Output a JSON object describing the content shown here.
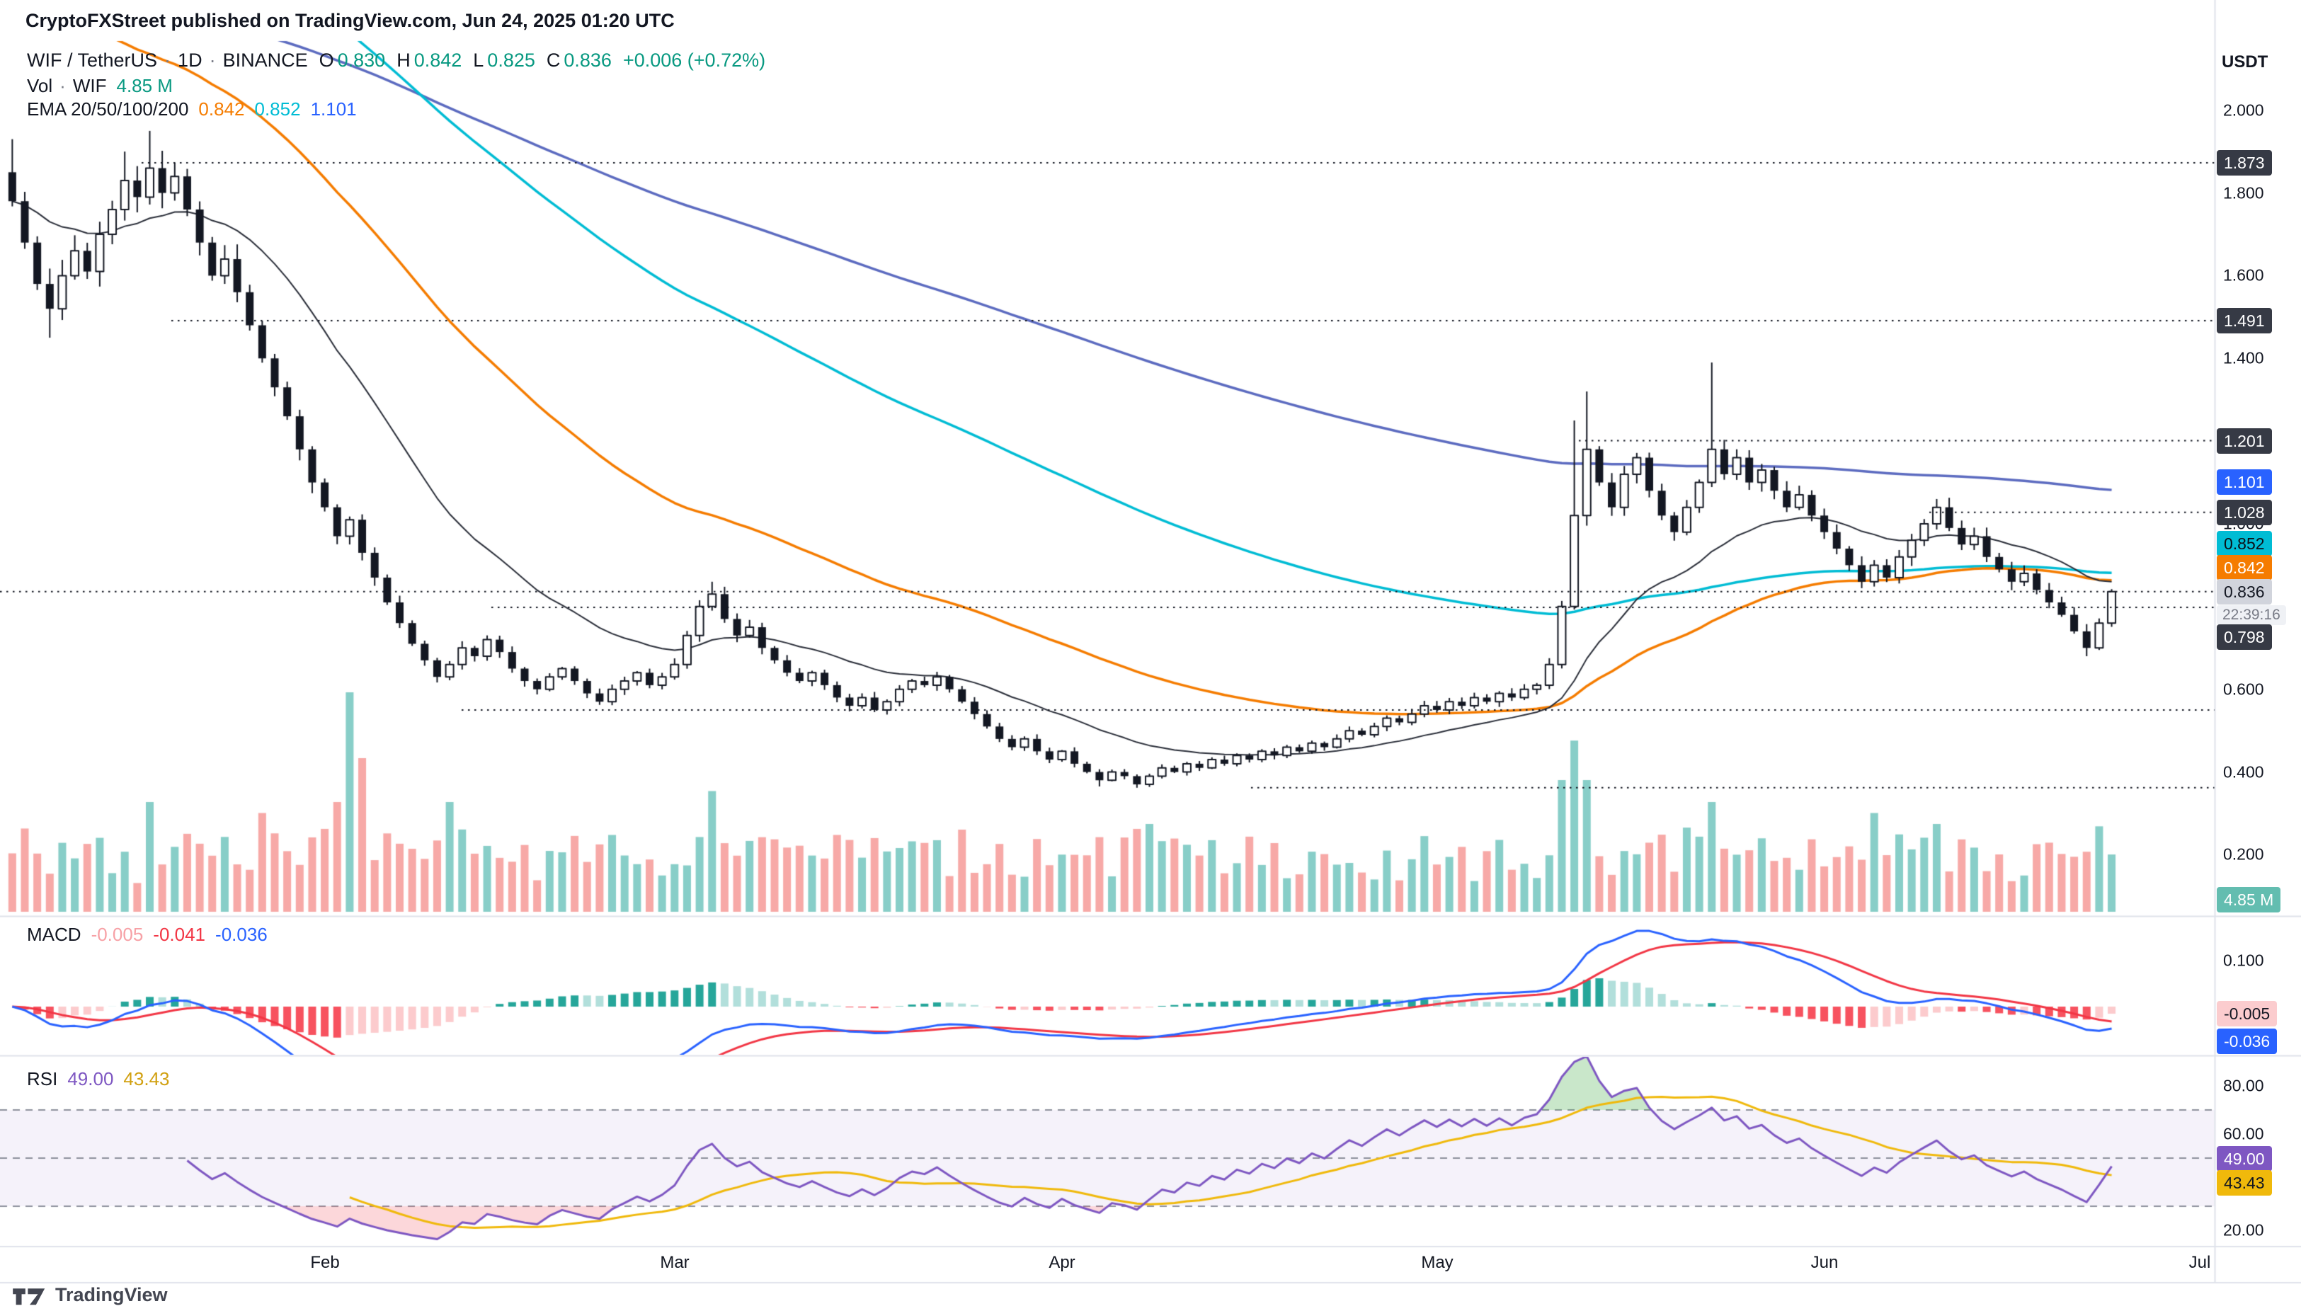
{
  "attribution": "CryptoFXStreet published on TradingView.com, Jun 24, 2025 01:20 UTC",
  "symbol": {
    "pair": "WIF / TetherUS",
    "separator": "·",
    "interval": "1D",
    "exchange": "BINANCE",
    "ohlc": {
      "open_label": "O",
      "open": "0.830",
      "high_label": "H",
      "high": "0.842",
      "low_label": "L",
      "low": "0.825",
      "close_label": "C",
      "close": "0.836",
      "change": "+0.006 (+0.72%)",
      "up_color": "#089981"
    }
  },
  "volume_legend": {
    "label": "Vol",
    "separator": "·",
    "symbol": "WIF",
    "value": "4.85 M",
    "color": "#089981"
  },
  "ema_legend": {
    "label": "EMA 20/50/100/200",
    "values": [
      {
        "text": "0.842",
        "color": "#f57c00"
      },
      {
        "text": "0.852",
        "color": "#00bcd4"
      },
      {
        "text": "1.101",
        "color": "#2962ff"
      }
    ]
  },
  "macd_legend": {
    "label": "MACD",
    "values": [
      {
        "text": "-0.005",
        "color": "#f7a1a6"
      },
      {
        "text": "-0.041",
        "color": "#f23645"
      },
      {
        "text": "-0.036",
        "color": "#2962ff"
      }
    ]
  },
  "rsi_legend": {
    "label": "RSI",
    "values": [
      {
        "text": "49.00",
        "color": "#7e57c2"
      },
      {
        "text": "43.43",
        "color": "#d1a010"
      }
    ]
  },
  "price_axis": {
    "unit": "USDT",
    "ticks": [
      {
        "label": "2.000",
        "value": 2.0
      },
      {
        "label": "1.800",
        "value": 1.8
      },
      {
        "label": "1.600",
        "value": 1.6
      },
      {
        "label": "1.400",
        "value": 1.4
      },
      {
        "label": "1.000",
        "value": 1.0
      },
      {
        "label": "0.600",
        "value": 0.6
      },
      {
        "label": "0.400",
        "value": 0.4
      },
      {
        "label": "0.200",
        "value": 0.2
      }
    ]
  },
  "indicator_axis": {
    "macd_ticks": [
      {
        "label": "0.100",
        "value": 0.1
      }
    ],
    "rsi_ticks": [
      {
        "label": "80.00",
        "value": 80
      },
      {
        "label": "60.00",
        "value": 60
      },
      {
        "label": "20.00",
        "value": 20
      }
    ]
  },
  "badges": [
    {
      "id": "level-1873",
      "text": "1.873",
      "bg": "#363a45",
      "fg": "#ffffff"
    },
    {
      "id": "level-1491",
      "text": "1.491",
      "bg": "#363a45",
      "fg": "#ffffff"
    },
    {
      "id": "level-1201",
      "text": "1.201",
      "bg": "#363a45",
      "fg": "#ffffff"
    },
    {
      "id": "ema-200",
      "text": "1.101",
      "bg": "#2962ff",
      "fg": "#ffffff"
    },
    {
      "id": "level-1028",
      "text": "1.028",
      "bg": "#363a45",
      "fg": "#ffffff"
    },
    {
      "id": "ema-100",
      "text": "0.852",
      "bg": "#00bcd4",
      "fg": "#0c0e15"
    },
    {
      "id": "ema-50",
      "text": "0.842",
      "bg": "#f57c00",
      "fg": "#ffffff"
    },
    {
      "id": "last-price",
      "text": "0.836",
      "bg": "#d1d4dc",
      "fg": "#131722"
    },
    {
      "id": "countdown",
      "text": "22:39:16",
      "bg": "#eff1f5",
      "fg": "#787b86"
    },
    {
      "id": "level-0798",
      "text": "0.798",
      "bg": "#363a45",
      "fg": "#ffffff"
    },
    {
      "id": "volume",
      "text": "4.85 M",
      "bg": "#63bdb0",
      "fg": "#ffffff"
    },
    {
      "id": "macd-hist",
      "text": "-0.005",
      "bg": "#fbccce",
      "fg": "#131722"
    },
    {
      "id": "macd-line",
      "text": "-0.036",
      "bg": "#2962ff",
      "fg": "#ffffff"
    },
    {
      "id": "rsi",
      "text": "49.00",
      "bg": "#7e57c2",
      "fg": "#ffffff"
    },
    {
      "id": "rsi-ma",
      "text": "43.43",
      "bg": "#f0b90b",
      "fg": "#131722"
    }
  ],
  "time_axis": {
    "months": [
      "Feb",
      "Mar",
      "Apr",
      "May",
      "Jun",
      "Jul"
    ]
  },
  "footer": {
    "brand": "TradingView"
  },
  "chart_data": [
    {
      "type": "candlestick",
      "name": "WIF/USDT daily price",
      "interval": "1D",
      "x_end_label": "Jun 24, 2025",
      "last_bar": {
        "open": 0.83,
        "high": 0.842,
        "low": 0.825,
        "close": 0.836,
        "change": 0.006,
        "change_pct": 0.72
      },
      "ylim": [
        0.054,
        2.087
      ],
      "y_ticks": [
        2.0,
        1.8,
        1.6,
        1.4,
        1.2,
        1.0,
        0.8,
        0.6,
        0.4,
        0.2
      ],
      "x_tick_labels": [
        "Feb",
        "Mar",
        "Apr",
        "May",
        "Jun",
        "Jul"
      ],
      "horizontal_levels": [
        1.873,
        1.491,
        1.201,
        1.028,
        0.836,
        0.798,
        0.55,
        0.362
      ],
      "open_first": 1.85,
      "closes": [
        1.78,
        1.68,
        1.58,
        1.52,
        1.6,
        1.66,
        1.61,
        1.7,
        1.76,
        1.83,
        1.79,
        1.86,
        1.8,
        1.84,
        1.76,
        1.68,
        1.6,
        1.64,
        1.56,
        1.48,
        1.4,
        1.33,
        1.26,
        1.18,
        1.1,
        1.04,
        0.97,
        1.01,
        0.93,
        0.87,
        0.81,
        0.76,
        0.71,
        0.67,
        0.63,
        0.66,
        0.7,
        0.68,
        0.72,
        0.69,
        0.65,
        0.62,
        0.6,
        0.63,
        0.65,
        0.62,
        0.59,
        0.57,
        0.6,
        0.62,
        0.64,
        0.61,
        0.63,
        0.66,
        0.73,
        0.8,
        0.83,
        0.77,
        0.73,
        0.75,
        0.7,
        0.67,
        0.64,
        0.62,
        0.64,
        0.61,
        0.58,
        0.56,
        0.58,
        0.55,
        0.57,
        0.6,
        0.62,
        0.61,
        0.63,
        0.6,
        0.57,
        0.54,
        0.51,
        0.48,
        0.46,
        0.48,
        0.45,
        0.43,
        0.45,
        0.42,
        0.4,
        0.38,
        0.4,
        0.39,
        0.37,
        0.39,
        0.41,
        0.4,
        0.42,
        0.41,
        0.43,
        0.42,
        0.44,
        0.43,
        0.45,
        0.44,
        0.46,
        0.45,
        0.47,
        0.46,
        0.48,
        0.5,
        0.49,
        0.51,
        0.53,
        0.52,
        0.54,
        0.56,
        0.55,
        0.57,
        0.56,
        0.58,
        0.57,
        0.59,
        0.58,
        0.6,
        0.61,
        0.66,
        0.8,
        1.02,
        1.18,
        1.1,
        1.04,
        1.12,
        1.16,
        1.08,
        1.02,
        0.98,
        1.04,
        1.1,
        1.18,
        1.12,
        1.16,
        1.1,
        1.13,
        1.08,
        1.04,
        1.07,
        1.02,
        0.98,
        0.94,
        0.9,
        0.86,
        0.9,
        0.87,
        0.92,
        0.96,
        1.0,
        1.04,
        0.99,
        0.95,
        0.97,
        0.92,
        0.89,
        0.86,
        0.88,
        0.84,
        0.81,
        0.78,
        0.74,
        0.7,
        0.76,
        0.836
      ],
      "high_overrides": {
        "0": 1.93,
        "9": 1.9,
        "11": 1.95,
        "13": 1.873,
        "56": 0.86,
        "125": 1.25,
        "126": 1.32,
        "136": 1.39,
        "154": 1.06,
        "168": 0.842
      },
      "low_overrides": {
        "3": 1.45,
        "87": 0.365,
        "90": 0.362,
        "166": 0.68
      }
    },
    {
      "type": "line",
      "name": "EMA overlays",
      "periods": [
        20,
        50,
        100,
        200
      ],
      "last_values": [
        0.798,
        0.842,
        0.852,
        1.101
      ],
      "colors": {
        "ema20": "#2a2e39",
        "ema50": "#f57c00",
        "ema100": "#00bcd4",
        "ema200": "#5c6bc0"
      }
    },
    {
      "type": "bar",
      "name": "Volume",
      "last_value_label": "4.85 M",
      "up_color": "rgba(38,166,154,0.55)",
      "down_color": "rgba(239,83,80,0.5)",
      "spikes": {
        "11": 0.5,
        "20": 0.45,
        "26": 0.5,
        "27": 1.0,
        "28": 0.7,
        "35": 0.5,
        "56": 0.55,
        "66": 0.35,
        "91": 0.4,
        "124": 0.6,
        "125": 0.78,
        "126": 0.6,
        "136": 0.5,
        "149": 0.45,
        "154": 0.4
      }
    },
    {
      "type": "line+bar",
      "name": "MACD 12/26/9",
      "last": {
        "histogram": -0.005,
        "signal": -0.041,
        "macd": -0.036
      },
      "y_tick": 0.1,
      "colors": {
        "macd": "#2962ff",
        "signal": "#f23645",
        "hist_up": "#26a69a",
        "hist_up_fade": "#b2dfdb",
        "hist_dn": "#f7525f",
        "hist_dn_fade": "#fccbcd"
      }
    },
    {
      "type": "line",
      "name": "RSI 14",
      "last": 49.0,
      "ma_last": 43.43,
      "bands": [
        70,
        50,
        30
      ],
      "y_ticks": [
        80,
        60,
        40,
        20
      ],
      "colors": {
        "rsi": "#7e57c2",
        "rsi_ma": "#f0b90b",
        "band_fill": "rgba(126,87,194,0.08)"
      }
    }
  ],
  "colors": {
    "candle_up": "#ffffff",
    "candle_down": "#131722",
    "candle_border": "#131722",
    "separator": "#e0e3eb",
    "text": "#131722",
    "muted": "#787b86",
    "up": "#089981",
    "down": "#f23645"
  }
}
